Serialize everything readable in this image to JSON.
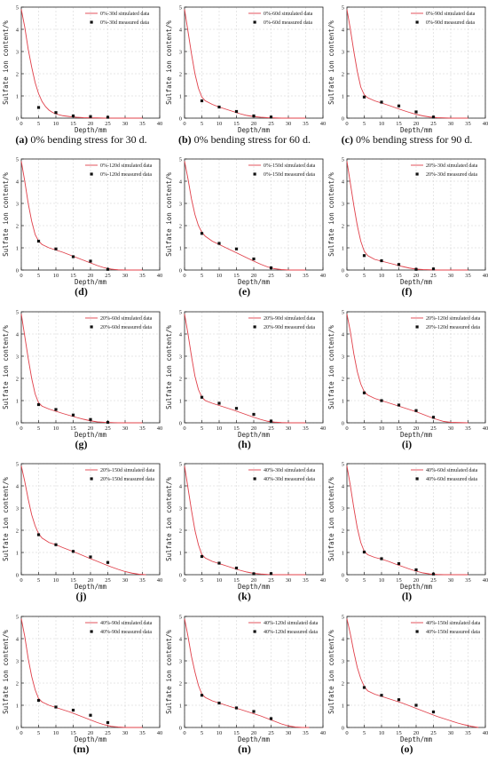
{
  "figure": {
    "x_axis_label": "Depth/mm",
    "y_axis_label": "Sulfate ion content/%",
    "x_ticks": [
      "0",
      "5",
      "10",
      "15",
      "20",
      "25",
      "30",
      "35",
      "40"
    ],
    "y_ticks": [
      "0",
      "1",
      "2",
      "3",
      "4",
      "5"
    ],
    "sim_color": "#e0404a",
    "meas_color": "#111111"
  },
  "chart_data": [
    {
      "type": "line",
      "caption_letter": "(a)",
      "caption_text": " 0% bending stress for 30 d.",
      "legend_sim": "0%-30d  simulated data",
      "legend_meas": "0%-30d  measured data",
      "xlim": [
        0,
        40
      ],
      "ylim": [
        0,
        5
      ],
      "simulated": {
        "x": [
          0,
          1,
          2,
          3,
          4,
          5,
          6,
          7,
          8,
          9,
          10,
          12,
          14,
          16,
          18,
          20,
          22,
          24,
          26,
          28,
          30,
          35
        ],
        "y": [
          4.9,
          4.1,
          3.1,
          2.3,
          1.6,
          1.1,
          0.75,
          0.52,
          0.36,
          0.26,
          0.19,
          0.11,
          0.07,
          0.04,
          0.02,
          0.01,
          0.01,
          0,
          0,
          0,
          0,
          0
        ]
      },
      "measured": {
        "x": [
          5,
          10,
          15,
          20,
          25
        ],
        "y": [
          0.48,
          0.25,
          0.1,
          0.07,
          0.04
        ]
      }
    },
    {
      "type": "line",
      "caption_letter": "(b)",
      "caption_text": " 0% bending stress for 60 d.",
      "legend_sim": "0%-60d  simulated data",
      "legend_meas": "0%-60d  measured data",
      "xlim": [
        0,
        40
      ],
      "ylim": [
        0,
        5
      ],
      "simulated": {
        "x": [
          0,
          1,
          2,
          3,
          4,
          5,
          6,
          8,
          10,
          12,
          14,
          16,
          18,
          20,
          22,
          24,
          26,
          28,
          30,
          35
        ],
        "y": [
          4.9,
          3.9,
          2.9,
          2.0,
          1.35,
          0.95,
          0.78,
          0.62,
          0.5,
          0.4,
          0.3,
          0.2,
          0.12,
          0.07,
          0.04,
          0.02,
          0.01,
          0,
          0,
          0
        ]
      },
      "measured": {
        "x": [
          5,
          10,
          15,
          20,
          25
        ],
        "y": [
          0.78,
          0.5,
          0.3,
          0.1,
          0.05
        ]
      }
    },
    {
      "type": "line",
      "caption_letter": "(c)",
      "caption_text": " 0% bending stress for 90 d.",
      "legend_sim": "0%-90d  simulated data",
      "legend_meas": "0%-90d  measured data",
      "xlim": [
        0,
        40
      ],
      "ylim": [
        0,
        5
      ],
      "simulated": {
        "x": [
          0,
          1,
          2,
          3,
          4,
          5,
          6,
          8,
          10,
          12,
          14,
          16,
          18,
          20,
          22,
          24,
          26,
          28,
          30,
          35
        ],
        "y": [
          4.9,
          4.0,
          3.0,
          2.1,
          1.4,
          1.05,
          0.92,
          0.78,
          0.68,
          0.58,
          0.47,
          0.36,
          0.26,
          0.17,
          0.1,
          0.05,
          0.02,
          0.01,
          0,
          0
        ]
      },
      "measured": {
        "x": [
          5,
          10,
          15,
          20,
          25
        ],
        "y": [
          0.95,
          0.72,
          0.55,
          0.28,
          0.05
        ]
      }
    },
    {
      "type": "line",
      "caption_letter": "(d)",
      "caption_text": "",
      "legend_sim": "0%-120d simulated data",
      "legend_meas": "0%-120d measured data",
      "xlim": [
        0,
        40
      ],
      "ylim": [
        0,
        5
      ],
      "simulated": {
        "x": [
          0,
          1,
          2,
          3,
          4,
          5,
          6,
          8,
          10,
          12,
          14,
          16,
          18,
          20,
          22,
          24,
          26,
          28,
          30,
          35
        ],
        "y": [
          4.9,
          4.0,
          3.0,
          2.2,
          1.6,
          1.3,
          1.15,
          1.0,
          0.9,
          0.8,
          0.68,
          0.56,
          0.44,
          0.32,
          0.2,
          0.1,
          0.04,
          0.01,
          0,
          0
        ]
      },
      "measured": {
        "x": [
          5,
          10,
          15,
          20,
          25
        ],
        "y": [
          1.3,
          0.95,
          0.6,
          0.4,
          0.03
        ]
      }
    },
    {
      "type": "line",
      "caption_letter": "(e)",
      "caption_text": "",
      "legend_sim": "0%-150d simulated data",
      "legend_meas": "0%-150d measured data",
      "xlim": [
        0,
        40
      ],
      "ylim": [
        0,
        5
      ],
      "simulated": {
        "x": [
          0,
          1,
          2,
          3,
          4,
          5,
          6,
          8,
          10,
          12,
          14,
          16,
          18,
          20,
          22,
          24,
          26,
          28,
          30,
          35
        ],
        "y": [
          4.9,
          4.1,
          3.2,
          2.5,
          2.0,
          1.7,
          1.52,
          1.3,
          1.15,
          1.0,
          0.85,
          0.7,
          0.55,
          0.4,
          0.26,
          0.14,
          0.06,
          0.02,
          0,
          0
        ]
      },
      "measured": {
        "x": [
          5,
          10,
          15,
          20,
          25
        ],
        "y": [
          1.65,
          1.2,
          0.95,
          0.5,
          0.1
        ]
      }
    },
    {
      "type": "line",
      "caption_letter": "(f)",
      "caption_text": "",
      "legend_sim": "20%-30d  simulated data",
      "legend_meas": "20%-30d  measured data",
      "xlim": [
        0,
        40
      ],
      "ylim": [
        0,
        5
      ],
      "simulated": {
        "x": [
          0,
          1,
          2,
          3,
          4,
          5,
          6,
          8,
          10,
          12,
          14,
          16,
          18,
          20,
          22,
          24,
          26,
          28,
          30,
          35
        ],
        "y": [
          4.9,
          3.9,
          2.9,
          2.0,
          1.3,
          0.85,
          0.65,
          0.48,
          0.4,
          0.32,
          0.24,
          0.16,
          0.09,
          0.04,
          0.02,
          0.01,
          0,
          0,
          0,
          0
        ]
      },
      "measured": {
        "x": [
          5,
          10,
          15,
          20,
          25
        ],
        "y": [
          0.65,
          0.42,
          0.25,
          0.03,
          0.05
        ]
      }
    },
    {
      "type": "line",
      "caption_letter": "(g)",
      "caption_text": "",
      "legend_sim": "20%-60d  simulated data",
      "legend_meas": "20%-60d  measured data",
      "xlim": [
        0,
        40
      ],
      "ylim": [
        0,
        5
      ],
      "simulated": {
        "x": [
          0,
          1,
          2,
          3,
          4,
          5,
          6,
          8,
          10,
          12,
          14,
          16,
          18,
          20,
          22,
          24,
          26,
          28,
          30,
          35
        ],
        "y": [
          4.9,
          3.9,
          2.9,
          2.0,
          1.3,
          0.9,
          0.75,
          0.62,
          0.52,
          0.42,
          0.33,
          0.24,
          0.16,
          0.09,
          0.04,
          0.02,
          0.01,
          0,
          0,
          0
        ]
      },
      "measured": {
        "x": [
          5,
          10,
          15,
          20,
          25
        ],
        "y": [
          0.82,
          0.6,
          0.35,
          0.15,
          0.02
        ]
      }
    },
    {
      "type": "line",
      "caption_letter": "(h)",
      "caption_text": "",
      "legend_sim": "20%-90d  simulated data",
      "legend_meas": "20%-90d  measured data",
      "xlim": [
        0,
        40
      ],
      "ylim": [
        0,
        5
      ],
      "simulated": {
        "x": [
          0,
          1,
          2,
          3,
          4,
          5,
          6,
          8,
          10,
          12,
          14,
          16,
          18,
          20,
          22,
          24,
          26,
          28,
          30,
          35
        ],
        "y": [
          4.9,
          4.0,
          3.0,
          2.1,
          1.5,
          1.15,
          1.0,
          0.88,
          0.78,
          0.68,
          0.58,
          0.47,
          0.36,
          0.25,
          0.15,
          0.07,
          0.03,
          0.01,
          0,
          0
        ]
      },
      "measured": {
        "x": [
          5,
          10,
          15,
          20,
          25
        ],
        "y": [
          1.15,
          0.88,
          0.65,
          0.38,
          0.08
        ]
      }
    },
    {
      "type": "line",
      "caption_letter": "(i)",
      "caption_text": "",
      "legend_sim": "20%-120d simulated data",
      "legend_meas": "20%-120d measured data",
      "xlim": [
        0,
        40
      ],
      "ylim": [
        0,
        5
      ],
      "simulated": {
        "x": [
          0,
          1,
          2,
          3,
          4,
          5,
          6,
          8,
          10,
          12,
          14,
          16,
          18,
          20,
          22,
          24,
          26,
          28,
          30,
          35
        ],
        "y": [
          4.9,
          4.1,
          3.1,
          2.3,
          1.75,
          1.4,
          1.25,
          1.1,
          1.0,
          0.9,
          0.8,
          0.7,
          0.6,
          0.5,
          0.38,
          0.26,
          0.15,
          0.06,
          0.02,
          0
        ]
      },
      "measured": {
        "x": [
          5,
          10,
          15,
          20,
          25
        ],
        "y": [
          1.35,
          1.0,
          0.8,
          0.55,
          0.25
        ]
      }
    },
    {
      "type": "line",
      "caption_letter": "(j)",
      "caption_text": "",
      "legend_sim": "20%-150d simulated data",
      "legend_meas": "20%-150d measured data",
      "xlim": [
        0,
        40
      ],
      "ylim": [
        0,
        5
      ],
      "simulated": {
        "x": [
          0,
          1,
          2,
          3,
          4,
          5,
          6,
          8,
          10,
          12,
          14,
          16,
          18,
          20,
          22,
          24,
          26,
          28,
          30,
          32,
          34,
          36
        ],
        "y": [
          4.9,
          4.2,
          3.4,
          2.7,
          2.2,
          1.85,
          1.65,
          1.45,
          1.35,
          1.22,
          1.1,
          0.98,
          0.85,
          0.72,
          0.6,
          0.47,
          0.35,
          0.24,
          0.14,
          0.07,
          0.02,
          0
        ]
      },
      "measured": {
        "x": [
          5,
          10,
          15,
          20,
          25
        ],
        "y": [
          1.8,
          1.35,
          1.05,
          0.8,
          0.55
        ]
      }
    },
    {
      "type": "line",
      "caption_letter": "(k)",
      "caption_text": "",
      "legend_sim": "40%-30d  simulated data",
      "legend_meas": "40%-30d  measured data",
      "xlim": [
        0,
        40
      ],
      "ylim": [
        0,
        5
      ],
      "simulated": {
        "x": [
          0,
          1,
          2,
          3,
          4,
          5,
          6,
          8,
          10,
          12,
          14,
          16,
          18,
          20,
          22,
          24,
          26,
          28,
          30,
          35
        ],
        "y": [
          4.9,
          3.9,
          2.9,
          2.0,
          1.35,
          0.9,
          0.75,
          0.6,
          0.5,
          0.4,
          0.3,
          0.2,
          0.12,
          0.06,
          0.03,
          0.01,
          0,
          0,
          0,
          0
        ]
      },
      "measured": {
        "x": [
          5,
          10,
          15,
          20,
          25
        ],
        "y": [
          0.82,
          0.52,
          0.3,
          0.04,
          0.05
        ]
      }
    },
    {
      "type": "line",
      "caption_letter": "(l)",
      "caption_text": "",
      "legend_sim": "40%-60d  simulated data",
      "legend_meas": "40%-60d  measured data",
      "xlim": [
        0,
        40
      ],
      "ylim": [
        0,
        5
      ],
      "simulated": {
        "x": [
          0,
          1,
          2,
          3,
          4,
          5,
          6,
          8,
          10,
          12,
          14,
          16,
          18,
          20,
          22,
          24,
          26,
          28,
          30,
          35
        ],
        "y": [
          4.9,
          4.0,
          3.0,
          2.1,
          1.45,
          1.05,
          0.9,
          0.78,
          0.7,
          0.6,
          0.48,
          0.37,
          0.26,
          0.16,
          0.08,
          0.03,
          0.01,
          0,
          0,
          0
        ]
      },
      "measured": {
        "x": [
          5,
          10,
          15,
          20,
          25
        ],
        "y": [
          1.02,
          0.72,
          0.5,
          0.22,
          0.03
        ]
      }
    },
    {
      "type": "line",
      "caption_letter": "(m)",
      "caption_text": "",
      "legend_sim": "40%-90d  simulated data",
      "legend_meas": "40%-90d  measured data",
      "xlim": [
        0,
        40
      ],
      "ylim": [
        0,
        5
      ],
      "simulated": {
        "x": [
          0,
          1,
          2,
          3,
          4,
          5,
          6,
          8,
          10,
          12,
          14,
          16,
          18,
          20,
          22,
          24,
          26,
          28,
          30,
          35
        ],
        "y": [
          4.9,
          4.1,
          3.1,
          2.3,
          1.7,
          1.3,
          1.15,
          1.0,
          0.9,
          0.8,
          0.7,
          0.58,
          0.46,
          0.34,
          0.22,
          0.12,
          0.05,
          0.02,
          0,
          0
        ]
      },
      "measured": {
        "x": [
          5,
          10,
          15,
          20,
          25
        ],
        "y": [
          1.22,
          0.92,
          0.78,
          0.55,
          0.22
        ]
      }
    },
    {
      "type": "line",
      "caption_letter": "(n)",
      "caption_text": "",
      "legend_sim": "40%-120d simulated data",
      "legend_meas": "40%-120d measured data",
      "xlim": [
        0,
        40
      ],
      "ylim": [
        0,
        5
      ],
      "simulated": {
        "x": [
          0,
          1,
          2,
          3,
          4,
          5,
          6,
          8,
          10,
          12,
          14,
          16,
          18,
          20,
          22,
          24,
          26,
          28,
          30,
          32,
          34,
          36
        ],
        "y": [
          4.9,
          4.1,
          3.2,
          2.5,
          1.9,
          1.5,
          1.35,
          1.2,
          1.1,
          1.0,
          0.9,
          0.82,
          0.72,
          0.62,
          0.52,
          0.4,
          0.28,
          0.16,
          0.07,
          0.02,
          0,
          0
        ]
      },
      "measured": {
        "x": [
          5,
          10,
          15,
          20,
          25
        ],
        "y": [
          1.45,
          1.1,
          0.88,
          0.72,
          0.4
        ]
      }
    },
    {
      "type": "line",
      "caption_letter": "(o)",
      "caption_text": "",
      "legend_sim": "40%-150d simulated data",
      "legend_meas": "40%-150d measured data",
      "xlim": [
        0,
        40
      ],
      "ylim": [
        0,
        5
      ],
      "simulated": {
        "x": [
          0,
          1,
          2,
          3,
          4,
          5,
          6,
          8,
          10,
          12,
          14,
          16,
          18,
          20,
          22,
          24,
          26,
          28,
          30,
          32,
          34,
          36,
          38
        ],
        "y": [
          4.9,
          4.2,
          3.4,
          2.7,
          2.2,
          1.85,
          1.65,
          1.5,
          1.4,
          1.3,
          1.2,
          1.1,
          0.98,
          0.86,
          0.74,
          0.62,
          0.5,
          0.4,
          0.3,
          0.2,
          0.12,
          0.05,
          0
        ]
      },
      "measured": {
        "x": [
          5,
          10,
          15,
          20,
          25
        ],
        "y": [
          1.8,
          1.45,
          1.25,
          1.0,
          0.7
        ]
      }
    }
  ]
}
